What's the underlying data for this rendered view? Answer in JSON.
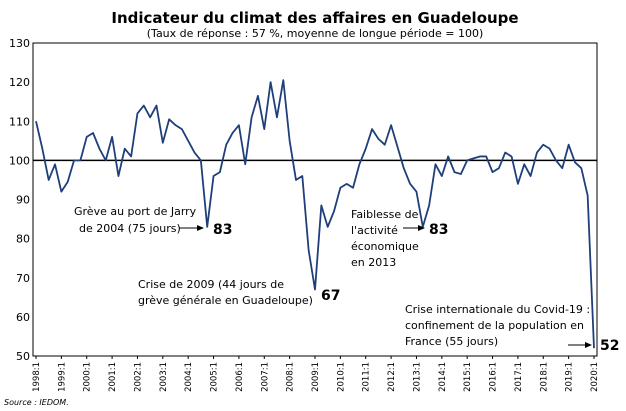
{
  "chart_data": {
    "type": "line",
    "title": "Indicateur du climat des affaires en Guadeloupe",
    "subtitle": "(Taux de réponse : 57 %, moyenne de longue période = 100)",
    "xlabel": "",
    "ylabel": "",
    "ylim": [
      50,
      130
    ],
    "yticks": [
      50,
      60,
      70,
      80,
      90,
      100,
      110,
      120,
      130
    ],
    "x_tick_labels": [
      "1998:1",
      "1999:1",
      "2000:1",
      "2001:1",
      "2002:1",
      "2003:1",
      "2004:1",
      "2005:1",
      "2006:1",
      "2007:1",
      "2008:1",
      "2009:1",
      "2010:1",
      "2011:1",
      "2012:1",
      "2013:1",
      "2014:1",
      "2015:1",
      "2016:1",
      "2017:1",
      "2018:1",
      "2019:1",
      "2020:1"
    ],
    "reference_line": 100,
    "grid": "none",
    "legend": "none",
    "line_color": "#1f3f7a",
    "series": [
      {
        "values": [
          110,
          103,
          95,
          99,
          92,
          94.5,
          100,
          100,
          106,
          107,
          103,
          100,
          106,
          96,
          103,
          101,
          112,
          114,
          111,
          114,
          104.5,
          110.5,
          109,
          108,
          105,
          102,
          100,
          83,
          96,
          97,
          104,
          107,
          109,
          99,
          111,
          116.5,
          108,
          120,
          111,
          120.5,
          105,
          95,
          96,
          77,
          67,
          88.5,
          83,
          87,
          93,
          94,
          93,
          99,
          103,
          108,
          105.5,
          104,
          109,
          103.5,
          98,
          94,
          92,
          83,
          88.5,
          99,
          96,
          101,
          97,
          96.5,
          100,
          100.5,
          101,
          101,
          97,
          98,
          102,
          101,
          94,
          99,
          96,
          102,
          104,
          103,
          100,
          98,
          104,
          99.5,
          98,
          91,
          52
        ]
      }
    ],
    "annotations": [
      {
        "text_lines": [
          "Grève au port de Jarry",
          "de 2004 (75 jours)"
        ],
        "value_label": "83"
      },
      {
        "text_lines": [
          "Crise de 2009 (44 jours de",
          "grève générale en Guadeloupe)"
        ],
        "value_label": "67"
      },
      {
        "text_lines": [
          "Faiblesse de",
          "l'activité",
          "économique",
          "en 2013"
        ],
        "value_label": "83"
      },
      {
        "text_lines": [
          "Crise internationale du Covid-19 :",
          "confinement de la population en",
          "France (55 jours)"
        ],
        "value_label": "52"
      }
    ],
    "source": "Source : IEDOM."
  }
}
